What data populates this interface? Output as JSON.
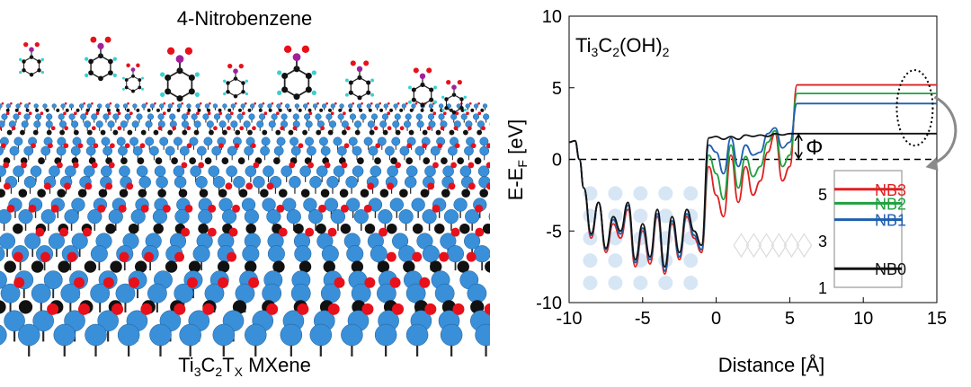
{
  "left_panel": {
    "title": "4-Nitrobenzene",
    "caption_main": "Ti",
    "caption_sub1": "3",
    "caption_c": "C",
    "caption_sub2": "2",
    "caption_t": "T",
    "caption_subx": "X",
    "caption_tail": " MXene",
    "colors": {
      "ti": "#3a8fd9",
      "o": "#e8101a",
      "c": "#111111",
      "h": "#39d0d0",
      "n": "#a0209a"
    }
  },
  "chart_data": {
    "type": "line",
    "title_main": "Ti",
    "title_sub1": "3",
    "title_c": "C",
    "title_sub2": "2",
    "title_tail": "(OH)",
    "title_sub3": "2",
    "xlabel": "Distance [Å]",
    "ylabel_main": "E-E",
    "ylabel_sub": "F",
    "ylabel_tail": " [eV]",
    "xlim": [
      -10,
      15
    ],
    "ylim": [
      -10,
      10
    ],
    "xticks": [
      "-10",
      "-5",
      "0",
      "5",
      "10",
      "15"
    ],
    "yticks": [
      "-10",
      "-5",
      "0",
      "5",
      "10"
    ],
    "phi_label": "Φ",
    "fermi_level": 0,
    "series": [
      {
        "name": "NB0",
        "color": "#111111",
        "plateau": 1.8,
        "x": [
          -10,
          -9.6,
          -9.3,
          -9,
          -8.5,
          -8,
          -7.5,
          -7,
          -6.5,
          -6,
          -5.5,
          -5,
          -4.5,
          -4,
          -3.5,
          -3,
          -2.5,
          -2,
          -1.5,
          -1,
          -0.5,
          0,
          0.5,
          1,
          1.5,
          2,
          2.5,
          3,
          3.5,
          4,
          4.5,
          5,
          5.5,
          6,
          8,
          10,
          12,
          14,
          15
        ],
        "y": [
          1.2,
          1.3,
          0.0,
          -2.0,
          -5.2,
          -3.0,
          -6.2,
          -4.0,
          -5.0,
          -3.0,
          -7.0,
          -4.5,
          -6.8,
          -3.5,
          -7.5,
          -4.0,
          -6.5,
          -3.5,
          -5.0,
          -6.0,
          1.5,
          1.6,
          1.4,
          1.6,
          1.4,
          1.7,
          1.6,
          1.7,
          1.6,
          1.8,
          1.7,
          1.8,
          1.8,
          1.8,
          1.8,
          1.8,
          1.8,
          1.8,
          1.8
        ]
      },
      {
        "name": "NB1",
        "color": "#1f5fb0",
        "plateau": 3.9,
        "x": [
          -10,
          -9.6,
          -9.3,
          -9,
          -8.5,
          -8,
          -7.5,
          -7,
          -6.5,
          -6,
          -5.5,
          -5,
          -4.5,
          -4,
          -3.5,
          -3,
          -2.5,
          -2,
          -1.5,
          -1,
          -0.5,
          0,
          0.5,
          1,
          1.5,
          2,
          2.5,
          3,
          3.5,
          4,
          4.5,
          5,
          5.5,
          6,
          8,
          10,
          12,
          14,
          15
        ],
        "y": [
          1.2,
          1.3,
          0.0,
          -2.0,
          -5.3,
          -3.0,
          -6.3,
          -4.2,
          -5.2,
          -3.2,
          -7.2,
          -4.8,
          -7.0,
          -3.8,
          -7.8,
          -4.3,
          -6.8,
          -3.8,
          -5.3,
          -6.3,
          1.0,
          0.5,
          -1.0,
          1.5,
          -0.5,
          1.0,
          0.3,
          0.5,
          1.8,
          2.2,
          0.8,
          1.2,
          3.9,
          3.9,
          3.9,
          3.9,
          3.9,
          3.9,
          3.9
        ]
      },
      {
        "name": "NB2",
        "color": "#20a040",
        "plateau": 4.6,
        "x": [
          -10,
          -9.6,
          -9.3,
          -9,
          -8.5,
          -8,
          -7.5,
          -7,
          -6.5,
          -6,
          -5.5,
          -5,
          -4.5,
          -4,
          -3.5,
          -3,
          -2.5,
          -2,
          -1.5,
          -1,
          -0.5,
          0,
          0.5,
          1,
          1.5,
          2,
          2.5,
          3,
          3.5,
          4,
          4.5,
          5,
          5.5,
          6,
          8,
          10,
          12,
          14,
          15
        ],
        "y": [
          1.2,
          1.3,
          0.0,
          -2.0,
          -5.3,
          -3.0,
          -6.3,
          -4.2,
          -5.2,
          -3.2,
          -7.2,
          -4.8,
          -7.0,
          -3.8,
          -7.8,
          -4.3,
          -6.8,
          -3.8,
          -5.3,
          -6.3,
          0.3,
          -1.0,
          -2.8,
          1.0,
          -2.0,
          0.2,
          -1.2,
          -0.5,
          1.2,
          2.0,
          -0.5,
          0.3,
          4.6,
          4.6,
          4.6,
          4.6,
          4.6,
          4.6,
          4.6
        ]
      },
      {
        "name": "NB3",
        "color": "#e02020",
        "plateau": 5.2,
        "x": [
          -10,
          -9.6,
          -9.3,
          -9,
          -8.5,
          -8,
          -7.5,
          -7,
          -6.5,
          -6,
          -5.5,
          -5,
          -4.5,
          -4,
          -3.5,
          -3,
          -2.5,
          -2,
          -1.5,
          -1,
          -0.5,
          0,
          0.5,
          1,
          1.5,
          2,
          2.5,
          3,
          3.5,
          4,
          4.5,
          5,
          5.5,
          6,
          8,
          10,
          12,
          14,
          15
        ],
        "y": [
          1.2,
          1.3,
          0.0,
          -2.0,
          -5.5,
          -3.0,
          -6.5,
          -4.5,
          -5.5,
          -3.5,
          -7.5,
          -5.0,
          -7.3,
          -4.0,
          -8.0,
          -4.5,
          -7.0,
          -4.0,
          -5.5,
          -6.5,
          -0.5,
          -2.5,
          -4.0,
          0.3,
          -3.0,
          -0.5,
          -2.5,
          -1.5,
          0.5,
          1.8,
          -1.5,
          -0.5,
          5.2,
          5.2,
          5.2,
          5.2,
          5.2,
          5.2,
          5.2
        ]
      }
    ],
    "inset": {
      "ylim": [
        1,
        6
      ],
      "yticks": [
        "5",
        "3",
        "1"
      ],
      "levels": [
        {
          "name": "NB3",
          "value": 5.2,
          "color": "#e02020"
        },
        {
          "name": "NB2",
          "value": 4.6,
          "color": "#20a040"
        },
        {
          "name": "NB1",
          "value": 3.9,
          "color": "#1f5fb0"
        },
        {
          "name": "NB0",
          "value": 1.8,
          "color": "#111111"
        }
      ]
    }
  }
}
